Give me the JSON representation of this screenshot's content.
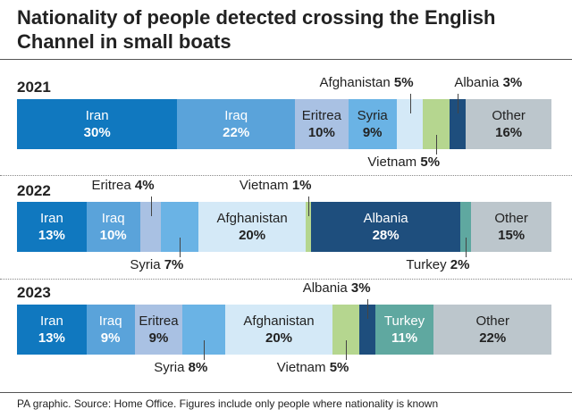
{
  "title": "Nationality of people detected crossing the English Channel in small boats",
  "source": "PA graphic. Source: Home Office. Figures include only people where nationality is known",
  "colors": {
    "Iran": "#1078bf",
    "Iraq": "#5aa3da",
    "Eritrea": "#a9c1e3",
    "Syria": "#6ab3e5",
    "Afghanistan": "#d4e9f7",
    "Vietnam": "#b5d68f",
    "Albania": "#1e4e7d",
    "Turkey": "#5fa8a0",
    "Other": "#bcc6cc"
  },
  "chart_data": {
    "type": "bar",
    "orientation": "horizontal-stacked-100%",
    "title": "Nationality of people detected crossing the English Channel in small boats",
    "years": [
      {
        "year": "2021",
        "segments": [
          {
            "name": "Iran",
            "value": 30,
            "pct": "30%"
          },
          {
            "name": "Iraq",
            "value": 22,
            "pct": "22%"
          },
          {
            "name": "Eritrea",
            "value": 10,
            "pct": "10%"
          },
          {
            "name": "Syria",
            "value": 9,
            "pct": "9%"
          },
          {
            "name": "Afghanistan",
            "value": 5,
            "pct": "5%"
          },
          {
            "name": "Vietnam",
            "value": 5,
            "pct": "5%"
          },
          {
            "name": "Albania",
            "value": 3,
            "pct": "3%"
          },
          {
            "name": "Other",
            "value": 16,
            "pct": "16%"
          }
        ]
      },
      {
        "year": "2022",
        "segments": [
          {
            "name": "Iran",
            "value": 13,
            "pct": "13%"
          },
          {
            "name": "Iraq",
            "value": 10,
            "pct": "10%"
          },
          {
            "name": "Eritrea",
            "value": 4,
            "pct": "4%"
          },
          {
            "name": "Syria",
            "value": 7,
            "pct": "7%"
          },
          {
            "name": "Afghanistan",
            "value": 20,
            "pct": "20%"
          },
          {
            "name": "Vietnam",
            "value": 1,
            "pct": "1%"
          },
          {
            "name": "Albania",
            "value": 28,
            "pct": "28%"
          },
          {
            "name": "Turkey",
            "value": 2,
            "pct": "2%"
          },
          {
            "name": "Other",
            "value": 15,
            "pct": "15%"
          }
        ]
      },
      {
        "year": "2023",
        "segments": [
          {
            "name": "Iran",
            "value": 13,
            "pct": "13%"
          },
          {
            "name": "Iraq",
            "value": 9,
            "pct": "9%"
          },
          {
            "name": "Eritrea",
            "value": 9,
            "pct": "9%"
          },
          {
            "name": "Syria",
            "value": 8,
            "pct": "8%"
          },
          {
            "name": "Afghanistan",
            "value": 20,
            "pct": "20%"
          },
          {
            "name": "Vietnam",
            "value": 5,
            "pct": "5%"
          },
          {
            "name": "Albania",
            "value": 3,
            "pct": "3%"
          },
          {
            "name": "Turkey",
            "value": 11,
            "pct": "11%"
          },
          {
            "name": "Other",
            "value": 22,
            "pct": "22%"
          }
        ]
      }
    ]
  }
}
